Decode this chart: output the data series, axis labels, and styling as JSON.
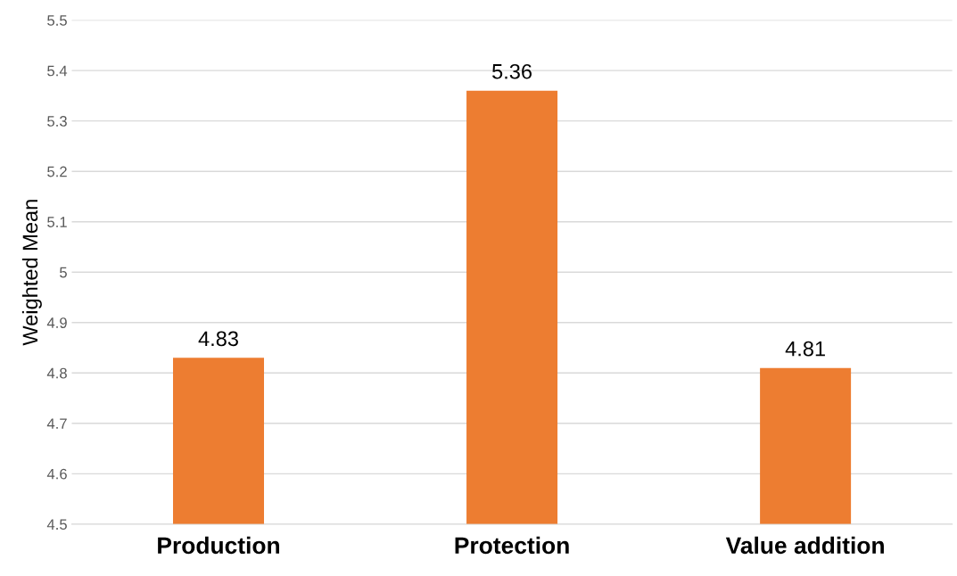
{
  "chart_data": {
    "type": "bar",
    "ylabel": "Weighted Mean",
    "categories": [
      "Production",
      "Protection",
      "Value addition"
    ],
    "values": [
      4.83,
      5.36,
      4.81
    ],
    "color": "#ed7d31",
    "ylim": [
      4.5,
      5.5
    ],
    "yticks": [
      4.5,
      4.6,
      4.7,
      4.8,
      4.9,
      5,
      5.1,
      5.2,
      5.3,
      5.4,
      5.5
    ],
    "grid": "y",
    "data_labels": true
  }
}
